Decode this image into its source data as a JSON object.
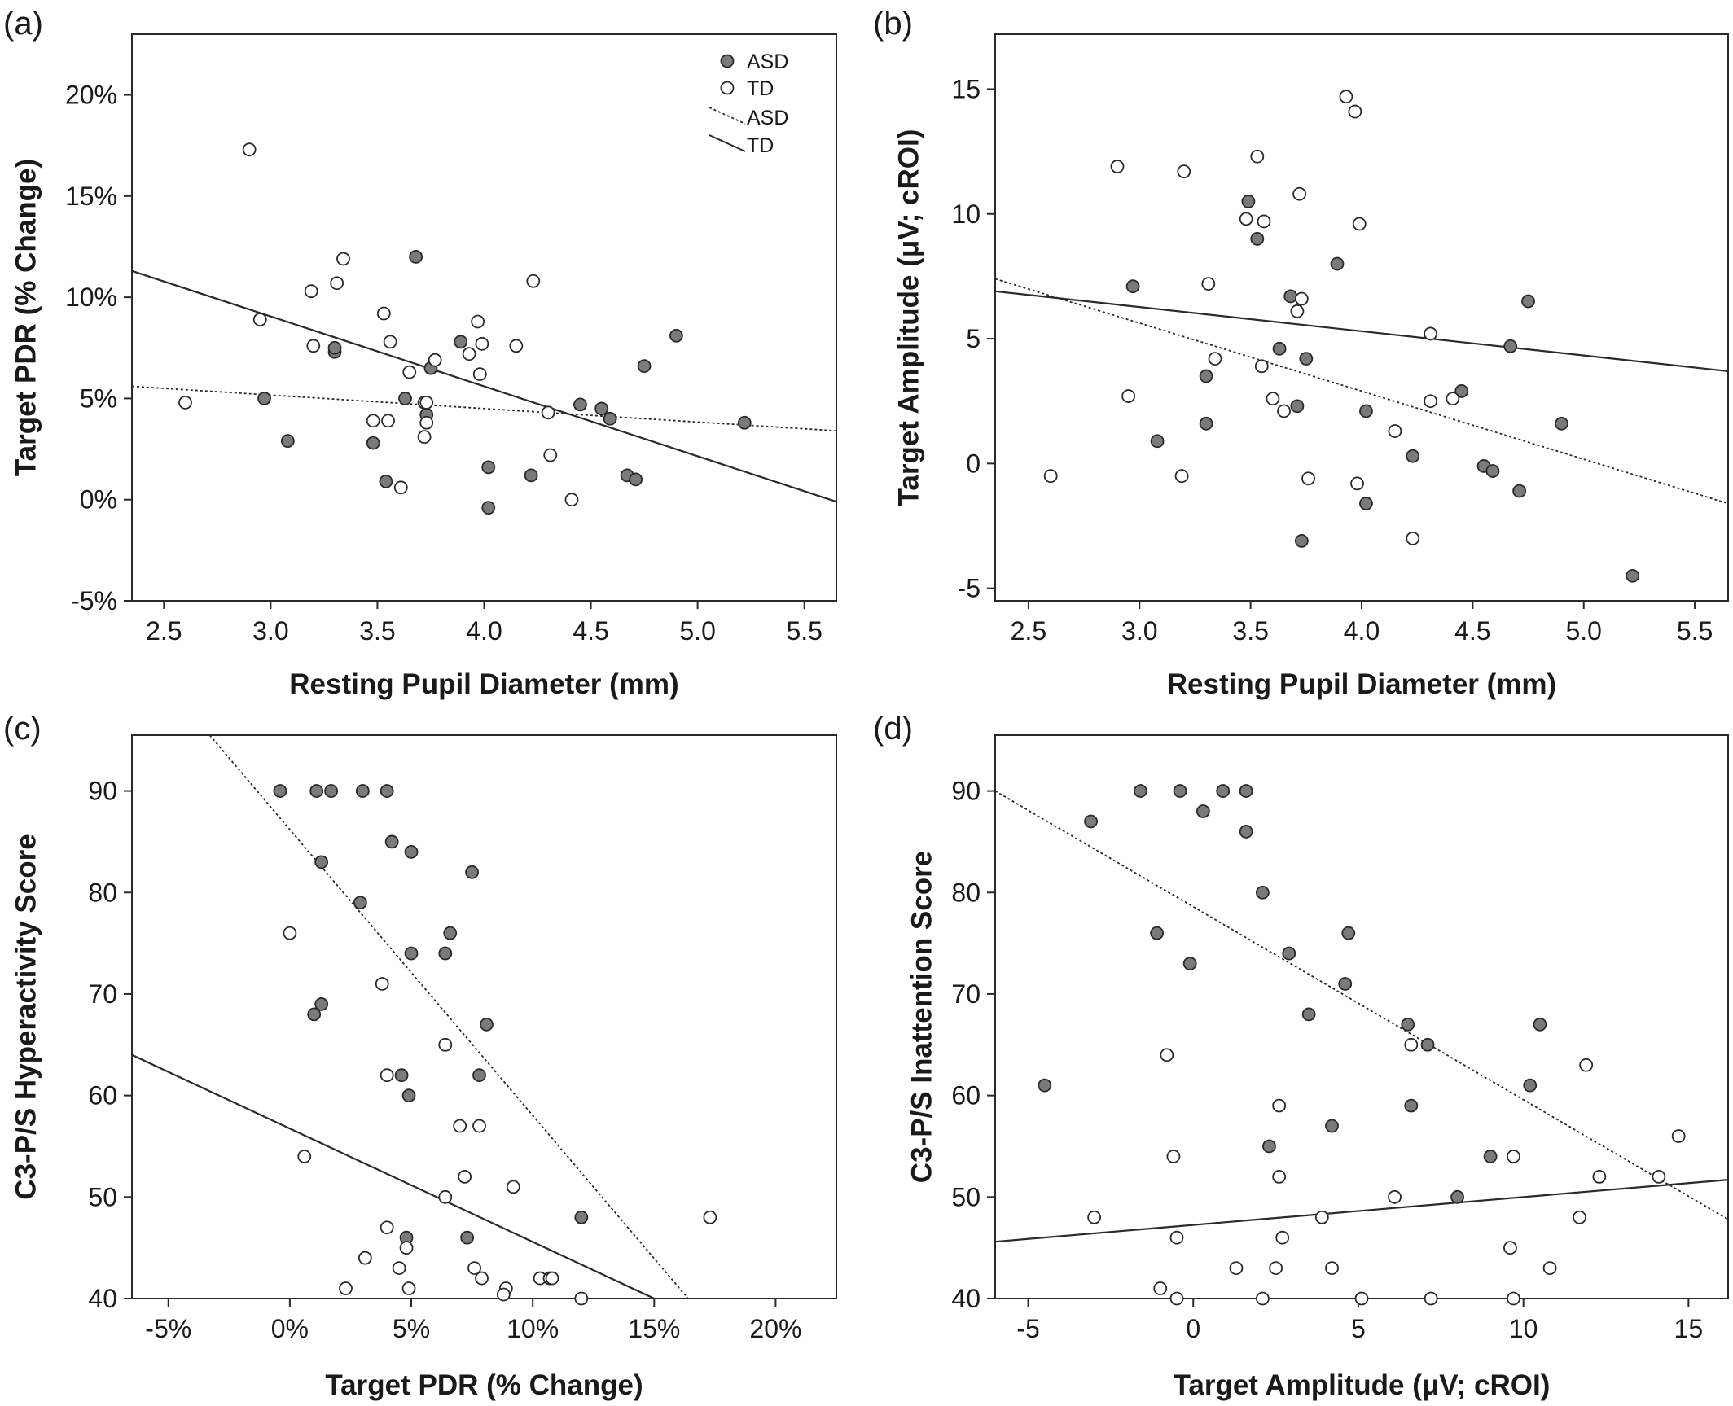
{
  "colors": {
    "asd_fill": "#7a7a7a",
    "td_fill": "#ffffff",
    "marker_stroke": "#2a2a2a",
    "line": "#2a2a2a"
  },
  "chart_data": [
    {
      "id": "a",
      "panel_label": "(a)",
      "type": "scatter",
      "xlabel": "Resting Pupil Diameter (mm)",
      "ylabel": "Target PDR (% Change)",
      "xlim": [
        2.35,
        5.65
      ],
      "ylim": [
        -5,
        23
      ],
      "xticks": [
        2.5,
        3.0,
        3.5,
        4.0,
        4.5,
        5.0,
        5.5
      ],
      "xtick_labels": [
        "2.5",
        "3.0",
        "3.5",
        "4.0",
        "4.5",
        "5.0",
        "5.5"
      ],
      "yticks": [
        -5,
        0,
        5,
        10,
        15,
        20
      ],
      "ytick_labels": [
        "-5%",
        "0%",
        "5%",
        "10%",
        "15%",
        "20%"
      ],
      "legend": {
        "position": "top-right",
        "entries": [
          {
            "label": "ASD",
            "kind": "marker",
            "group": "ASD"
          },
          {
            "label": "TD",
            "kind": "marker",
            "group": "TD"
          },
          {
            "label": "ASD",
            "kind": "dotted-line",
            "group": "ASD"
          },
          {
            "label": "TD",
            "kind": "solid-line",
            "group": "TD"
          }
        ]
      },
      "series": [
        {
          "name": "ASD",
          "points": [
            [
              2.97,
              5.0
            ],
            [
              3.08,
              2.9
            ],
            [
              3.3,
              7.3
            ],
            [
              3.3,
              7.5
            ],
            [
              3.48,
              2.8
            ],
            [
              3.54,
              0.9
            ],
            [
              3.63,
              5.0
            ],
            [
              3.68,
              12.0
            ],
            [
              3.73,
              4.2
            ],
            [
              3.75,
              6.5
            ],
            [
              3.89,
              7.8
            ],
            [
              4.02,
              1.6
            ],
            [
              4.02,
              -0.4
            ],
            [
              4.22,
              1.2
            ],
            [
              4.45,
              4.7
            ],
            [
              4.55,
              4.5
            ],
            [
              4.59,
              4.0
            ],
            [
              4.67,
              1.2
            ],
            [
              4.71,
              1.0
            ],
            [
              4.75,
              6.6
            ],
            [
              4.9,
              8.1
            ],
            [
              5.22,
              3.8
            ]
          ]
        },
        {
          "name": "TD",
          "points": [
            [
              2.6,
              4.8
            ],
            [
              2.9,
              17.3
            ],
            [
              2.95,
              8.9
            ],
            [
              3.19,
              10.3
            ],
            [
              3.2,
              7.6
            ],
            [
              3.31,
              10.7
            ],
            [
              3.34,
              11.9
            ],
            [
              3.48,
              3.9
            ],
            [
              3.53,
              9.2
            ],
            [
              3.55,
              3.9
            ],
            [
              3.56,
              7.8
            ],
            [
              3.61,
              0.6
            ],
            [
              3.65,
              6.3
            ],
            [
              3.72,
              3.1
            ],
            [
              3.72,
              4.8
            ],
            [
              3.73,
              4.8
            ],
            [
              3.73,
              3.8
            ],
            [
              3.77,
              6.9
            ],
            [
              3.93,
              7.2
            ],
            [
              3.97,
              8.8
            ],
            [
              3.98,
              6.2
            ],
            [
              3.99,
              7.7
            ],
            [
              4.15,
              7.6
            ],
            [
              4.23,
              10.8
            ],
            [
              4.3,
              4.3
            ],
            [
              4.31,
              2.2
            ],
            [
              4.41,
              0.0
            ]
          ]
        }
      ],
      "fits": [
        {
          "group": "ASD",
          "style": "dotted",
          "x": [
            2.35,
            5.65
          ],
          "y": [
            5.6,
            3.4
          ]
        },
        {
          "group": "TD",
          "style": "solid",
          "x": [
            2.35,
            5.65
          ],
          "y": [
            11.3,
            -0.1
          ]
        }
      ]
    },
    {
      "id": "b",
      "panel_label": "(b)",
      "type": "scatter",
      "xlabel": "Resting Pupil Diameter (mm)",
      "ylabel": "Target Amplitude (μV; cROI)",
      "xlim": [
        2.35,
        5.65
      ],
      "ylim": [
        -5.5,
        17.2
      ],
      "xticks": [
        2.5,
        3.0,
        3.5,
        4.0,
        4.5,
        5.0,
        5.5
      ],
      "xtick_labels": [
        "2.5",
        "3.0",
        "3.5",
        "4.0",
        "4.5",
        "5.0",
        "5.5"
      ],
      "yticks": [
        -5,
        0,
        5,
        10,
        15
      ],
      "ytick_labels": [
        "-5",
        "0",
        "5",
        "10",
        "15"
      ],
      "series": [
        {
          "name": "ASD",
          "points": [
            [
              2.97,
              7.1
            ],
            [
              3.08,
              0.9
            ],
            [
              3.3,
              3.5
            ],
            [
              3.3,
              1.6
            ],
            [
              3.49,
              10.5
            ],
            [
              3.53,
              9.0
            ],
            [
              3.63,
              4.6
            ],
            [
              3.68,
              6.7
            ],
            [
              3.71,
              2.3
            ],
            [
              3.73,
              -3.1
            ],
            [
              3.75,
              4.2
            ],
            [
              3.89,
              8.0
            ],
            [
              4.02,
              2.1
            ],
            [
              4.02,
              -1.6
            ],
            [
              4.23,
              0.3
            ],
            [
              4.45,
              2.9
            ],
            [
              4.55,
              -0.1
            ],
            [
              4.59,
              -0.3
            ],
            [
              4.67,
              4.7
            ],
            [
              4.71,
              -1.1
            ],
            [
              4.75,
              6.5
            ],
            [
              4.9,
              1.6
            ],
            [
              5.22,
              -4.5
            ]
          ]
        },
        {
          "name": "TD",
          "points": [
            [
              2.6,
              -0.5
            ],
            [
              2.9,
              11.9
            ],
            [
              2.95,
              2.7
            ],
            [
              3.19,
              -0.5
            ],
            [
              3.2,
              11.7
            ],
            [
              3.31,
              7.2
            ],
            [
              3.34,
              4.2
            ],
            [
              3.48,
              9.8
            ],
            [
              3.53,
              12.3
            ],
            [
              3.55,
              3.9
            ],
            [
              3.56,
              9.7
            ],
            [
              3.6,
              2.6
            ],
            [
              3.65,
              2.1
            ],
            [
              3.71,
              6.1
            ],
            [
              3.72,
              10.8
            ],
            [
              3.73,
              6.6
            ],
            [
              3.76,
              -0.6
            ],
            [
              3.93,
              14.7
            ],
            [
              3.97,
              14.1
            ],
            [
              3.98,
              -0.8
            ],
            [
              3.99,
              9.6
            ],
            [
              4.15,
              1.3
            ],
            [
              4.23,
              -3.0
            ],
            [
              4.31,
              5.2
            ],
            [
              4.31,
              2.5
            ],
            [
              4.41,
              2.6
            ]
          ]
        }
      ],
      "fits": [
        {
          "group": "ASD",
          "style": "dotted",
          "x": [
            2.35,
            5.65
          ],
          "y": [
            7.4,
            -1.6
          ]
        },
        {
          "group": "TD",
          "style": "solid",
          "x": [
            2.35,
            5.65
          ],
          "y": [
            6.9,
            3.7
          ]
        }
      ]
    },
    {
      "id": "c",
      "panel_label": "(c)",
      "type": "scatter",
      "xlabel": "Target PDR (% Change)",
      "ylabel": "C3-P/S Hyperactivity Score",
      "xlim": [
        -6.5,
        22.5
      ],
      "ylim": [
        40,
        95.5
      ],
      "xticks": [
        -5,
        0,
        5,
        10,
        15,
        20
      ],
      "xtick_labels": [
        "-5%",
        "0%",
        "5%",
        "10%",
        "15%",
        "20%"
      ],
      "yticks": [
        40,
        50,
        60,
        70,
        80,
        90
      ],
      "ytick_labels": [
        "40",
        "50",
        "60",
        "70",
        "80",
        "90"
      ],
      "series": [
        {
          "name": "ASD",
          "points": [
            [
              -0.4,
              90
            ],
            [
              1.1,
              90
            ],
            [
              1.7,
              90
            ],
            [
              3.0,
              90
            ],
            [
              4.0,
              90
            ],
            [
              4.2,
              85
            ],
            [
              5.0,
              84
            ],
            [
              1.3,
              83
            ],
            [
              7.5,
              82
            ],
            [
              2.9,
              79
            ],
            [
              6.6,
              76
            ],
            [
              5.0,
              74
            ],
            [
              6.4,
              74
            ],
            [
              1.0,
              68
            ],
            [
              1.3,
              69
            ],
            [
              8.1,
              67
            ],
            [
              4.6,
              62
            ],
            [
              7.8,
              62
            ],
            [
              4.9,
              60
            ],
            [
              12.0,
              48
            ],
            [
              4.8,
              46
            ],
            [
              7.3,
              46
            ]
          ]
        },
        {
          "name": "TD",
          "points": [
            [
              0.0,
              76
            ],
            [
              3.8,
              71
            ],
            [
              6.4,
              65
            ],
            [
              4.0,
              62
            ],
            [
              7.0,
              57
            ],
            [
              7.8,
              57
            ],
            [
              0.6,
              54
            ],
            [
              7.2,
              52
            ],
            [
              9.2,
              51
            ],
            [
              6.4,
              50
            ],
            [
              17.3,
              48
            ],
            [
              4.0,
              47
            ],
            [
              4.8,
              45
            ],
            [
              3.1,
              44
            ],
            [
              4.5,
              43
            ],
            [
              7.6,
              43
            ],
            [
              7.9,
              42
            ],
            [
              10.3,
              42
            ],
            [
              10.7,
              42
            ],
            [
              10.8,
              42
            ],
            [
              2.3,
              41
            ],
            [
              4.9,
              41
            ],
            [
              8.9,
              41
            ],
            [
              8.8,
              40.4
            ],
            [
              12.0,
              40
            ]
          ]
        }
      ],
      "fits": [
        {
          "group": "ASD",
          "style": "dotted",
          "x": [
            -3.3,
            16.4
          ],
          "y": [
            95.5,
            40
          ]
        },
        {
          "group": "TD",
          "style": "solid",
          "x": [
            -6.5,
            15.0
          ],
          "y": [
            64.0,
            40
          ]
        }
      ]
    },
    {
      "id": "d",
      "panel_label": "(d)",
      "type": "scatter",
      "xlabel": "Target Amplitude (μV; cROI)",
      "ylabel": "C3-P/S Inattention Score",
      "xlim": [
        -6.0,
        16.2
      ],
      "ylim": [
        40,
        95.5
      ],
      "xticks": [
        -5,
        0,
        5,
        10,
        15
      ],
      "xtick_labels": [
        "-5",
        "0",
        "5",
        "10",
        "15"
      ],
      "yticks": [
        40,
        50,
        60,
        70,
        80,
        90
      ],
      "ytick_labels": [
        "40",
        "50",
        "60",
        "70",
        "80",
        "90"
      ],
      "series": [
        {
          "name": "ASD",
          "points": [
            [
              -1.6,
              90
            ],
            [
              -0.4,
              90
            ],
            [
              0.9,
              90
            ],
            [
              1.6,
              90
            ],
            [
              0.3,
              88
            ],
            [
              -3.1,
              87
            ],
            [
              1.6,
              86
            ],
            [
              2.1,
              80
            ],
            [
              -1.1,
              76
            ],
            [
              4.7,
              76
            ],
            [
              2.9,
              74
            ],
            [
              -0.1,
              73
            ],
            [
              4.6,
              71
            ],
            [
              3.5,
              68
            ],
            [
              6.5,
              67
            ],
            [
              10.5,
              67
            ],
            [
              7.1,
              65
            ],
            [
              10.2,
              61
            ],
            [
              -4.5,
              61
            ],
            [
              6.6,
              59
            ],
            [
              4.2,
              57
            ],
            [
              2.3,
              55
            ],
            [
              9.0,
              54
            ],
            [
              8.0,
              50
            ]
          ]
        },
        {
          "name": "TD",
          "points": [
            [
              -0.8,
              64
            ],
            [
              6.6,
              65
            ],
            [
              11.9,
              63
            ],
            [
              2.6,
              59
            ],
            [
              -0.6,
              54
            ],
            [
              9.7,
              54
            ],
            [
              2.6,
              52
            ],
            [
              12.3,
              52
            ],
            [
              14.1,
              52
            ],
            [
              14.7,
              56
            ],
            [
              6.1,
              50
            ],
            [
              -3.0,
              48
            ],
            [
              3.9,
              48
            ],
            [
              11.7,
              48
            ],
            [
              -0.5,
              46
            ],
            [
              2.7,
              46
            ],
            [
              9.6,
              45
            ],
            [
              1.3,
              43
            ],
            [
              2.5,
              43
            ],
            [
              4.2,
              43
            ],
            [
              10.8,
              43
            ],
            [
              -1.0,
              41
            ],
            [
              -0.5,
              40
            ],
            [
              2.1,
              40
            ],
            [
              5.1,
              40
            ],
            [
              7.2,
              40
            ],
            [
              9.7,
              40
            ]
          ]
        }
      ],
      "fits": [
        {
          "group": "ASD",
          "style": "dotted",
          "x": [
            -6.0,
            16.2
          ],
          "y": [
            90.0,
            47.8
          ]
        },
        {
          "group": "TD",
          "style": "solid",
          "x": [
            -6.0,
            16.2
          ],
          "y": [
            45.6,
            51.7
          ]
        }
      ]
    }
  ]
}
